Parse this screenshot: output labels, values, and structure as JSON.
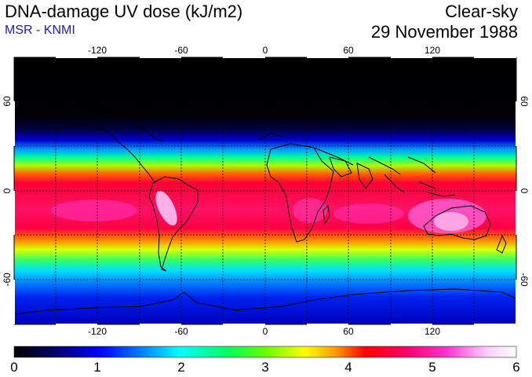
{
  "header": {
    "title": "DNA-damage UV dose (kJ/m2)",
    "subtitle": "MSR - KNMI",
    "mode": "Clear-sky",
    "date": "29 November 1988"
  },
  "map": {
    "lon_ticks": [
      "-120",
      "-60",
      "0",
      "60",
      "120"
    ],
    "lat_ticks": [
      "60",
      "0",
      "-60"
    ]
  },
  "colorbar": {
    "labels": [
      "0",
      "1",
      "2",
      "3",
      "4",
      "5",
      "6"
    ],
    "min": 0,
    "max": 6
  },
  "colors": {
    "scale": [
      "#000000",
      "#000066",
      "#0000ff",
      "#0099ff",
      "#00ffff",
      "#00ff66",
      "#66ff00",
      "#ffff00",
      "#ff9900",
      "#ff0000",
      "#ff0066",
      "#ff33cc",
      "#ffccff",
      "#ffffff"
    ]
  }
}
